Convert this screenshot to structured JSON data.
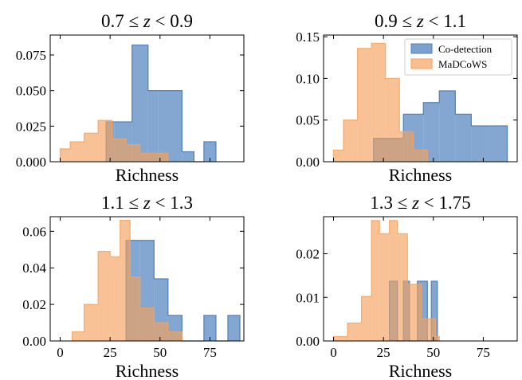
{
  "chart_data": [
    {
      "type": "histogram",
      "title": "0.7 ≤ z < 0.9",
      "title_parts": {
        "left": "0.7 ≤ ",
        "var": "z",
        "right": " < 0.9"
      },
      "xlabel": "Richness",
      "xlim": [
        -5,
        92
      ],
      "ylim": [
        0,
        0.089
      ],
      "xticks": [
        0,
        25,
        50,
        75
      ],
      "show_xtick_labels": false,
      "yticks": [
        0,
        0.025,
        0.05,
        0.075
      ],
      "ytick_labels": [
        "0.000",
        "0.025",
        "0.050",
        "0.075"
      ],
      "legend": false,
      "series": [
        {
          "name": "Co-detection",
          "color": "#4f81bd",
          "bins": [
            [
              23,
              27,
              0.028
            ],
            [
              27,
              36,
              0.028
            ],
            [
              36,
              44,
              0.082
            ],
            [
              44,
              49,
              0.05
            ],
            [
              49,
              61,
              0.05
            ],
            [
              61,
              67,
              0.007
            ],
            [
              67,
              72,
              0.0
            ],
            [
              72,
              78,
              0.014
            ]
          ]
        },
        {
          "name": "MaDCoWS",
          "color": "#f5a25d",
          "bins": [
            [
              0,
              5,
              0.009
            ],
            [
              5,
              12,
              0.014
            ],
            [
              12,
              19,
              0.02
            ],
            [
              19,
              26,
              0.029
            ],
            [
              26,
              33,
              0.016
            ],
            [
              33,
              40,
              0.012
            ],
            [
              40,
              47,
              0.006
            ],
            [
              47,
              54,
              0.006
            ]
          ]
        }
      ]
    },
    {
      "type": "histogram",
      "title": "0.9 ≤ z < 1.1",
      "title_parts": {
        "left": "0.9 ≤ ",
        "var": "z",
        "right": " < 1.1"
      },
      "xlabel": "Richness",
      "xlim": [
        -5,
        92
      ],
      "ylim": [
        0,
        0.152
      ],
      "xticks": [
        0,
        25,
        50,
        75
      ],
      "show_xtick_labels": false,
      "yticks": [
        0,
        0.05,
        0.1,
        0.15
      ],
      "ytick_labels": [
        "0.00",
        "0.05",
        "0.10",
        "0.15"
      ],
      "legend": true,
      "series": [
        {
          "name": "Co-detection",
          "color": "#4f81bd",
          "bins": [
            [
              20,
              35,
              0.028
            ],
            [
              35,
              45,
              0.057
            ],
            [
              45,
              53,
              0.071
            ],
            [
              53,
              61,
              0.085
            ],
            [
              61,
              69,
              0.057
            ],
            [
              69,
              77,
              0.043
            ],
            [
              77,
              87,
              0.043
            ]
          ]
        },
        {
          "name": "MaDCoWS",
          "color": "#f5a25d",
          "bins": [
            [
              0,
              5,
              0.014
            ],
            [
              5,
              12,
              0.05
            ],
            [
              12,
              19,
              0.136
            ],
            [
              19,
              26,
              0.142
            ],
            [
              26,
              33,
              0.1
            ],
            [
              33,
              40,
              0.036
            ],
            [
              40,
              47,
              0.014
            ],
            [
              47,
              54,
              0.0
            ]
          ]
        }
      ]
    },
    {
      "type": "histogram",
      "title": "1.1 ≤ z < 1.3",
      "title_parts": {
        "left": "1.1 ≤ ",
        "var": "z",
        "right": " < 1.3"
      },
      "xlabel": "Richness",
      "xlim": [
        -5,
        92
      ],
      "ylim": [
        0,
        0.068
      ],
      "xticks": [
        0,
        25,
        50,
        75
      ],
      "xtick_labels": [
        "0",
        "25",
        "50",
        "75"
      ],
      "show_xtick_labels": true,
      "yticks": [
        0,
        0.02,
        0.04,
        0.06
      ],
      "ytick_labels": [
        "0.00",
        "0.02",
        "0.04",
        "0.06"
      ],
      "legend": false,
      "series": [
        {
          "name": "Co-detection",
          "color": "#4f81bd",
          "bins": [
            [
              33,
              40,
              0.055
            ],
            [
              40,
              47,
              0.055
            ],
            [
              47,
              54,
              0.034
            ],
            [
              54,
              61,
              0.014
            ],
            [
              61,
              72,
              0.0
            ],
            [
              72,
              78,
              0.014
            ],
            [
              78,
              84,
              0.0
            ],
            [
              84,
              90,
              0.014
            ]
          ]
        },
        {
          "name": "MaDCoWS",
          "color": "#f5a25d",
          "bins": [
            [
              6,
              12,
              0.005
            ],
            [
              12,
              19,
              0.02
            ],
            [
              19,
              25,
              0.049
            ],
            [
              25,
              30,
              0.046
            ],
            [
              30,
              35,
              0.066
            ],
            [
              35,
              40,
              0.035
            ],
            [
              40,
              47,
              0.018
            ],
            [
              47,
              54,
              0.01
            ],
            [
              54,
              61,
              0.005
            ]
          ]
        }
      ]
    },
    {
      "type": "histogram",
      "title": "1.3 ≤ z < 1.75",
      "title_parts": {
        "left": "1.3 ≤ ",
        "var": "z",
        "right": " < 1.75"
      },
      "xlabel": "Richness",
      "xlim": [
        -5,
        92
      ],
      "ylim": [
        0,
        0.0285
      ],
      "xticks": [
        0,
        25,
        50,
        75
      ],
      "xtick_labels": [
        "0",
        "25",
        "50",
        "75"
      ],
      "show_xtick_labels": true,
      "yticks": [
        0,
        0.01,
        0.02
      ],
      "ytick_labels": [
        "0.00",
        "0.01",
        "0.02"
      ],
      "legend": false,
      "series": [
        {
          "name": "Co-detection",
          "color": "#4f81bd",
          "bins": [
            [
              28,
              32,
              0.0137
            ],
            [
              32,
              35,
              0.0
            ],
            [
              35,
              38,
              0.0137
            ],
            [
              38,
              42,
              0.0
            ],
            [
              42,
              47,
              0.0137
            ],
            [
              47,
              49,
              0.0
            ],
            [
              49,
              52,
              0.0137
            ]
          ]
        },
        {
          "name": "MaDCoWS",
          "color": "#f5a25d",
          "bins": [
            [
              0,
              7,
              0.001
            ],
            [
              7,
              14,
              0.0041
            ],
            [
              14,
              19,
              0.0102
            ],
            [
              19,
              23,
              0.0276
            ],
            [
              23,
              28,
              0.0246
            ],
            [
              28,
              32,
              0.0276
            ],
            [
              32,
              37,
              0.0246
            ],
            [
              37,
              44,
              0.013
            ],
            [
              44,
              51,
              0.0051
            ],
            [
              51,
              53,
              0.001
            ]
          ]
        }
      ]
    }
  ]
}
